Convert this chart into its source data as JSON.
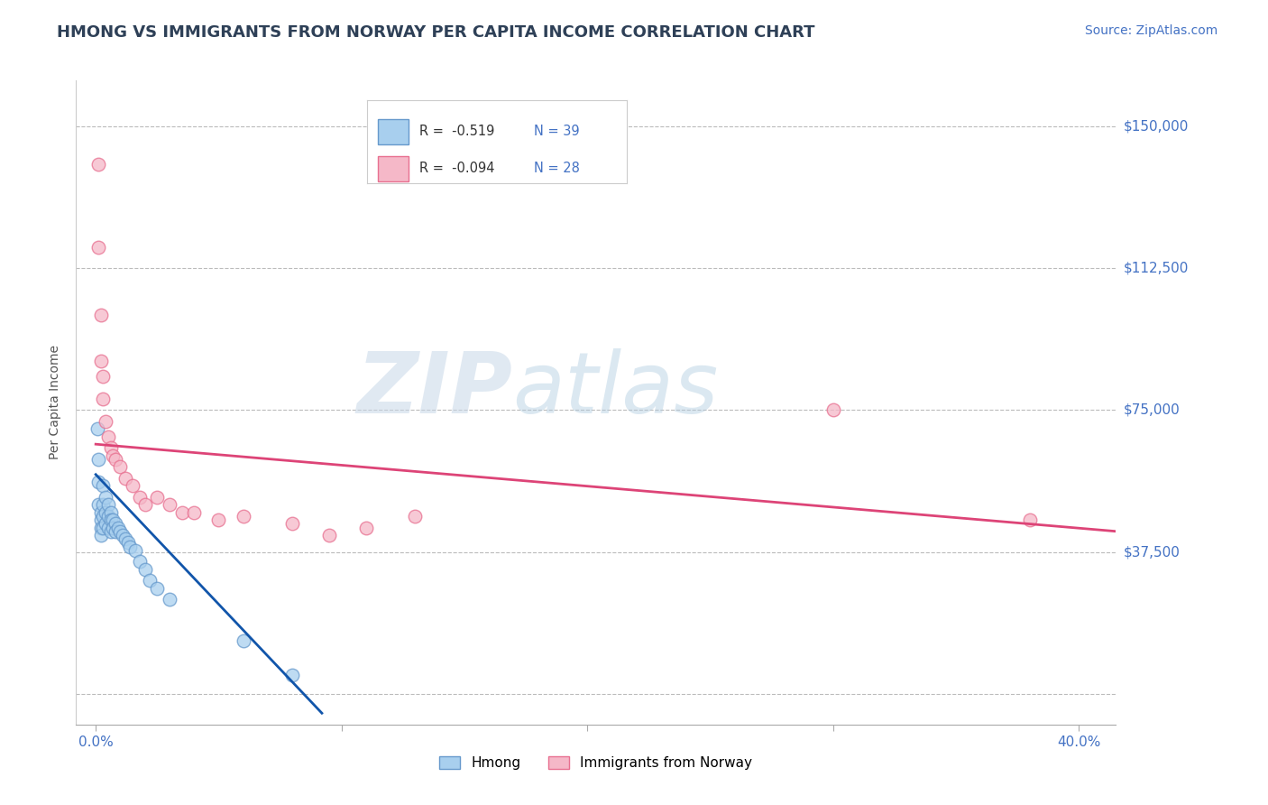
{
  "title": "HMONG VS IMMIGRANTS FROM NORWAY PER CAPITA INCOME CORRELATION CHART",
  "source": "Source: ZipAtlas.com",
  "ylabel": "Per Capita Income",
  "x_ticks": [
    0.0,
    0.1,
    0.2,
    0.3,
    0.4
  ],
  "x_tick_labels": [
    "0.0%",
    "",
    "",
    "",
    "40.0%"
  ],
  "y_ticks": [
    0,
    37500,
    75000,
    112500,
    150000
  ],
  "y_tick_labels": [
    "",
    "$37,500",
    "$75,000",
    "$112,500",
    "$150,000"
  ],
  "xlim": [
    -0.008,
    0.415
  ],
  "ylim": [
    -8000,
    162000
  ],
  "title_color": "#2E4057",
  "title_fontsize": 13,
  "source_color": "#4472C4",
  "source_fontsize": 10,
  "ylabel_color": "#555555",
  "ylabel_fontsize": 10,
  "xtick_color": "#4472C4",
  "ytick_color": "#4472C4",
  "grid_color": "#BBBBBB",
  "watermark_zip": "ZIP",
  "watermark_atlas": "atlas",
  "legend_r1": "R =  -0.519",
  "legend_n1": "N = 39",
  "legend_r2": "R =  -0.094",
  "legend_n2": "N = 28",
  "hmong_color": "#A8CFEE",
  "norway_color": "#F5B8C8",
  "hmong_edge": "#6699CC",
  "norway_edge": "#E87090",
  "hmong_scatter_x": [
    0.0005,
    0.001,
    0.001,
    0.001,
    0.002,
    0.002,
    0.002,
    0.002,
    0.003,
    0.003,
    0.003,
    0.003,
    0.004,
    0.004,
    0.004,
    0.005,
    0.005,
    0.005,
    0.006,
    0.006,
    0.006,
    0.007,
    0.007,
    0.008,
    0.008,
    0.009,
    0.01,
    0.011,
    0.012,
    0.013,
    0.014,
    0.016,
    0.018,
    0.02,
    0.022,
    0.025,
    0.03,
    0.06,
    0.08
  ],
  "hmong_scatter_y": [
    70000,
    62000,
    56000,
    50000,
    48000,
    46000,
    44000,
    42000,
    55000,
    50000,
    47000,
    44000,
    52000,
    48000,
    45000,
    50000,
    47000,
    44000,
    48000,
    46000,
    43000,
    46000,
    44000,
    45000,
    43000,
    44000,
    43000,
    42000,
    41000,
    40000,
    39000,
    38000,
    35000,
    33000,
    30000,
    28000,
    25000,
    14000,
    5000
  ],
  "norway_scatter_x": [
    0.001,
    0.001,
    0.002,
    0.002,
    0.003,
    0.003,
    0.004,
    0.005,
    0.006,
    0.007,
    0.008,
    0.01,
    0.012,
    0.015,
    0.018,
    0.02,
    0.025,
    0.03,
    0.035,
    0.04,
    0.05,
    0.06,
    0.08,
    0.095,
    0.11,
    0.13,
    0.3,
    0.38
  ],
  "norway_scatter_y": [
    140000,
    118000,
    100000,
    88000,
    84000,
    78000,
    72000,
    68000,
    65000,
    63000,
    62000,
    60000,
    57000,
    55000,
    52000,
    50000,
    52000,
    50000,
    48000,
    48000,
    46000,
    47000,
    45000,
    42000,
    44000,
    47000,
    75000,
    46000
  ],
  "hmong_line_x": [
    0.0,
    0.092
  ],
  "hmong_line_y": [
    58000,
    -5000
  ],
  "norway_line_x": [
    0.0,
    0.415
  ],
  "norway_line_y": [
    66000,
    43000
  ],
  "hmong_line_color": "#1155AA",
  "norway_line_color": "#DD4477",
  "legend_label1": "Hmong",
  "legend_label2": "Immigrants from Norway",
  "background_color": "#FFFFFF",
  "plot_bg_color": "#FFFFFF"
}
